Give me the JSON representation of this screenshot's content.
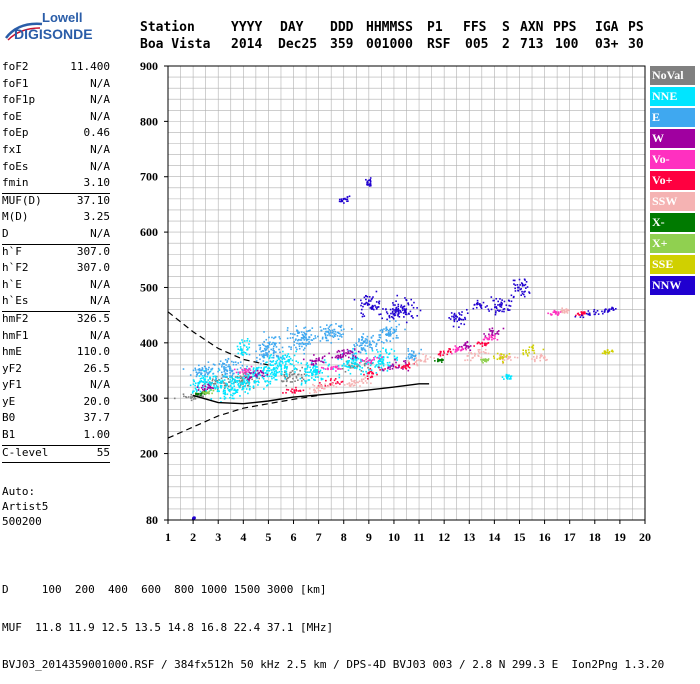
{
  "logo": {
    "brand": "Lowell",
    "name": "DIGISONDE"
  },
  "header": {
    "labels": [
      "Station",
      "YYYY",
      "DAY",
      "DDD",
      "HHMMSS",
      "P1",
      "FFS",
      "S",
      "AXN",
      "PPS",
      "IGA",
      "PS"
    ],
    "values": [
      "Boa Vista",
      "2014",
      "Dec25",
      "359",
      "001000",
      "RSF",
      "005",
      "2",
      "713",
      "100",
      "03+",
      "30"
    ]
  },
  "params": {
    "group1": [
      {
        "label": "foF2",
        "value": "11.400"
      },
      {
        "label": "foF1",
        "value": "N/A"
      },
      {
        "label": "foF1p",
        "value": "N/A"
      },
      {
        "label": "foE",
        "value": "N/A"
      },
      {
        "label": "foEp",
        "value": "0.46"
      },
      {
        "label": "fxI",
        "value": "N/A"
      },
      {
        "label": "foEs",
        "value": "N/A"
      },
      {
        "label": "fmin",
        "value": "3.10"
      }
    ],
    "group2": [
      {
        "label": "MUF(D)",
        "value": "37.10"
      },
      {
        "label": "M(D)",
        "value": "3.25"
      },
      {
        "label": "D",
        "value": "N/A"
      }
    ],
    "group3": [
      {
        "label": "h`F",
        "value": "307.0"
      },
      {
        "label": "h`F2",
        "value": "307.0"
      },
      {
        "label": "h`E",
        "value": "N/A"
      },
      {
        "label": "h`Es",
        "value": "N/A"
      }
    ],
    "group4": [
      {
        "label": "hmF2",
        "value": "326.5"
      },
      {
        "label": "hmF1",
        "value": "N/A"
      },
      {
        "label": "hmE",
        "value": "110.0"
      },
      {
        "label": "yF2",
        "value": "26.5"
      },
      {
        "label": "yF1",
        "value": "N/A"
      },
      {
        "label": "yE",
        "value": "20.0"
      },
      {
        "label": "B0",
        "value": "37.7"
      },
      {
        "label": "B1",
        "value": "1.00"
      }
    ],
    "group5": [
      {
        "label": "C-level",
        "value": "55"
      }
    ]
  },
  "auto": {
    "line1": "Auto:",
    "line2": "Artist5",
    "line3": "500200"
  },
  "legend": [
    {
      "label": "NoVal",
      "color": "#808080"
    },
    {
      "label": "NNE",
      "color": "#00e5ff"
    },
    {
      "label": "E",
      "color": "#3fa8f0"
    },
    {
      "label": "W",
      "color": "#a000a0"
    },
    {
      "label": "Vo-",
      "color": "#ff30c0"
    },
    {
      "label": "Vo+",
      "color": "#ff0040"
    },
    {
      "label": "SSW",
      "color": "#f5b3b3"
    },
    {
      "label": "X-",
      "color": "#007a00"
    },
    {
      "label": "X+",
      "color": "#90d050"
    },
    {
      "label": "SSE",
      "color": "#d0d000"
    },
    {
      "label": "NNW",
      "color": "#2000d0"
    }
  ],
  "footer": {
    "line1": "D     100  200  400  600  800 1000 1500 3000 [km]",
    "line2": "MUF  11.8 11.9 12.5 13.5 14.8 16.8 22.4 37.1 [MHz]",
    "line3": "BVJ03_2014359001000.RSF / 384fx512h 50 kHz 2.5 km / DPS-4D BVJ03 003 / 2.8 N 299.3 E  Ion2Png 1.3.20"
  },
  "chart_data": {
    "type": "scatter",
    "title": "",
    "xlabel": "",
    "ylabel": "",
    "xlim": [
      1,
      20
    ],
    "ylim": [
      80,
      900
    ],
    "x_ticks": [
      "1",
      "2",
      "3",
      "4",
      "5",
      "6",
      "7",
      "8",
      "9",
      "10",
      "11",
      "12",
      "13",
      "14",
      "15",
      "16",
      "17",
      "18",
      "19",
      "20"
    ],
    "y_ticks": [
      "80",
      "200",
      "300",
      "400",
      "500",
      "600",
      "700",
      "800",
      "900"
    ],
    "grid": true,
    "legend_placement": "right",
    "profile_curve": {
      "name": "",
      "points": [
        [
          2.0,
          305
        ],
        [
          3.0,
          292
        ],
        [
          4.0,
          290
        ],
        [
          5.0,
          295
        ],
        [
          6.0,
          302
        ],
        [
          7.0,
          306
        ],
        [
          8.0,
          310
        ],
        [
          9.0,
          315
        ],
        [
          10.0,
          320
        ],
        [
          11.0,
          326
        ],
        [
          11.4,
          326
        ]
      ]
    },
    "dashed_curve_upper": [
      [
        1.0,
        456
      ],
      [
        2.0,
        420
      ],
      [
        3.0,
        390
      ],
      [
        4.0,
        370
      ],
      [
        5.0,
        360
      ]
    ],
    "dashed_curve_lower": [
      [
        1.0,
        228
      ],
      [
        2.0,
        248
      ],
      [
        3.0,
        268
      ],
      [
        4.0,
        282
      ],
      [
        5.0,
        290
      ],
      [
        6.0,
        298
      ],
      [
        7.0,
        305
      ]
    ],
    "series": [
      {
        "name": "NoVal",
        "clusters": [
          [
            2.0,
            304,
            1,
            12
          ],
          [
            3.0,
            330,
            1,
            20
          ],
          [
            4.0,
            335,
            1,
            25
          ],
          [
            6.0,
            340,
            1,
            20
          ],
          [
            8.5,
            360,
            1,
            15
          ]
        ]
      },
      {
        "name": "NNE",
        "clusters": [
          [
            2.5,
            330,
            1.2,
            35
          ],
          [
            3.5,
            320,
            1.2,
            40
          ],
          [
            4.5,
            340,
            1.2,
            40
          ],
          [
            5.5,
            360,
            1.2,
            45
          ],
          [
            6.8,
            350,
            1.0,
            35
          ],
          [
            8.3,
            365,
            1.0,
            30
          ],
          [
            9.5,
            370,
            1.0,
            35
          ],
          [
            4.0,
            395,
            0.5,
            30
          ],
          [
            14.5,
            340,
            0.3,
            8
          ]
        ]
      },
      {
        "name": "E",
        "clusters": [
          [
            2.3,
            350,
            1.0,
            20
          ],
          [
            3.3,
            355,
            1.0,
            30
          ],
          [
            5.0,
            390,
            1.0,
            40
          ],
          [
            6.3,
            410,
            1.0,
            40
          ],
          [
            7.5,
            420,
            1.0,
            30
          ],
          [
            8.8,
            400,
            1.0,
            30
          ],
          [
            9.8,
            420,
            0.8,
            30
          ],
          [
            10.7,
            380,
            0.6,
            20
          ]
        ]
      },
      {
        "name": "W",
        "clusters": [
          [
            2.5,
            320,
            0.6,
            10
          ],
          [
            4.5,
            345,
            0.8,
            15
          ],
          [
            6.8,
            370,
            0.8,
            15
          ],
          [
            8.0,
            380,
            1.0,
            20
          ],
          [
            10.0,
            360,
            0.8,
            15
          ],
          [
            12.8,
            395,
            0.5,
            15
          ],
          [
            13.9,
            420,
            0.6,
            12
          ]
        ]
      },
      {
        "name": "Vo-",
        "clusters": [
          [
            4.0,
            350,
            0.8,
            10
          ],
          [
            7.5,
            355,
            0.8,
            10
          ],
          [
            9.0,
            370,
            0.6,
            10
          ],
          [
            12.5,
            390,
            0.4,
            10
          ],
          [
            13.8,
            410,
            0.5,
            10
          ],
          [
            16.4,
            455,
            0.5,
            8
          ]
        ]
      },
      {
        "name": "Vo+",
        "clusters": [
          [
            6.0,
            315,
            0.7,
            10
          ],
          [
            7.5,
            330,
            0.8,
            12
          ],
          [
            9.0,
            345,
            0.8,
            12
          ],
          [
            10.5,
            360,
            0.6,
            10
          ],
          [
            12.0,
            385,
            0.5,
            10
          ],
          [
            13.5,
            400,
            0.6,
            10
          ],
          [
            17.5,
            455,
            0.5,
            8
          ]
        ]
      },
      {
        "name": "SSW",
        "clusters": [
          [
            7.0,
            320,
            1.0,
            15
          ],
          [
            8.5,
            330,
            1.0,
            15
          ],
          [
            11.0,
            370,
            0.8,
            15
          ],
          [
            13.2,
            380,
            0.8,
            15
          ],
          [
            14.5,
            375,
            0.6,
            12
          ],
          [
            15.8,
            375,
            0.6,
            15
          ],
          [
            16.8,
            460,
            0.4,
            10
          ]
        ]
      },
      {
        "name": "X-",
        "clusters": [
          [
            2.3,
            310,
            0.5,
            6
          ],
          [
            11.8,
            370,
            0.3,
            5
          ]
        ]
      },
      {
        "name": "X+",
        "clusters": [
          [
            2.6,
            312,
            0.5,
            6
          ],
          [
            13.6,
            370,
            0.3,
            6
          ]
        ]
      },
      {
        "name": "SSE",
        "clusters": [
          [
            14.2,
            375,
            0.6,
            15
          ],
          [
            15.5,
            390,
            0.6,
            15
          ],
          [
            18.5,
            385,
            0.4,
            8
          ]
        ]
      },
      {
        "name": "NNW",
        "clusters": [
          [
            10.2,
            460,
            1.2,
            35
          ],
          [
            9.0,
            470,
            0.8,
            30
          ],
          [
            12.5,
            445,
            0.6,
            25
          ],
          [
            13.3,
            470,
            0.6,
            15
          ],
          [
            14.2,
            470,
            0.8,
            25
          ],
          [
            15.0,
            500,
            0.6,
            30
          ],
          [
            17.8,
            455,
            0.8,
            10
          ],
          [
            18.5,
            460,
            0.5,
            8
          ],
          [
            8.0,
            660,
            0.3,
            10
          ],
          [
            9.0,
            690,
            0.3,
            15
          ],
          [
            2.0,
            85,
            0.1,
            3
          ]
        ]
      }
    ]
  }
}
